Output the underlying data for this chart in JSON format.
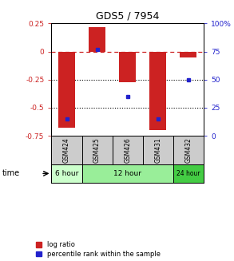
{
  "title": "GDS5 / 7954",
  "samples": [
    "GSM424",
    "GSM425",
    "GSM426",
    "GSM431",
    "GSM432"
  ],
  "log_ratio": [
    -0.68,
    0.22,
    -0.27,
    -0.7,
    -0.05
  ],
  "percentile_rank": [
    15,
    77,
    35,
    15,
    50
  ],
  "ylim_left": [
    -0.75,
    0.25
  ],
  "ylim_right": [
    0,
    100
  ],
  "yticks_left": [
    -0.75,
    -0.5,
    -0.25,
    0,
    0.25
  ],
  "ytick_labels_left": [
    "-0.75",
    "-0.5",
    "-0.25",
    "0",
    "0.25"
  ],
  "yticks_right": [
    0,
    25,
    50,
    75,
    100
  ],
  "ytick_labels_right": [
    "0",
    "25",
    "50",
    "75",
    "100%"
  ],
  "bar_color": "#cc2222",
  "dot_color": "#2222cc",
  "time_groups": [
    {
      "label": "6 hour",
      "samples": [
        "GSM424"
      ],
      "color": "#ccffcc"
    },
    {
      "label": "12 hour",
      "samples": [
        "GSM425",
        "GSM426",
        "GSM431"
      ],
      "color": "#99ee99"
    },
    {
      "label": "24 hour",
      "samples": [
        "GSM432"
      ],
      "color": "#44cc44"
    }
  ],
  "legend_bar_label": "log ratio",
  "legend_dot_label": "percentile rank within the sample",
  "background_color": "#ffffff",
  "plot_bg_color": "#ffffff",
  "sample_box_color": "#cccccc"
}
